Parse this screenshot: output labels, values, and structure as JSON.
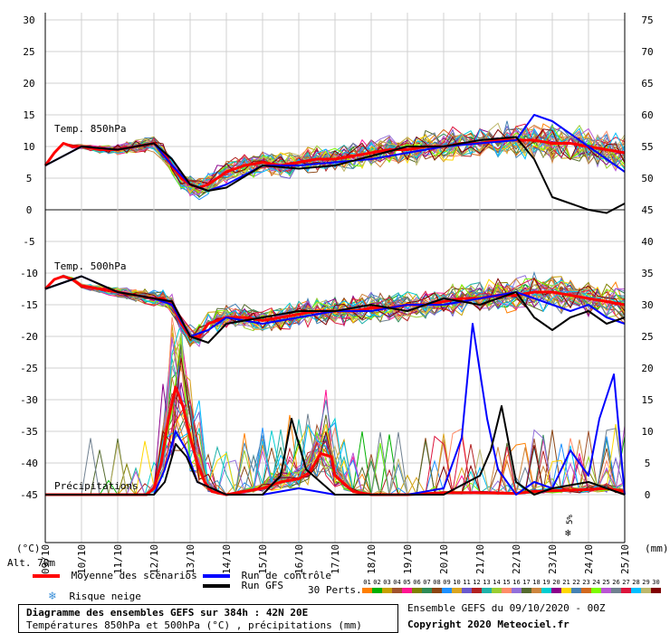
{
  "chart_data": {
    "type": "line",
    "title": "Diagramme des ensembles GEFS sur 384h : 42N 20E",
    "subtitle": "Températures 850hPa et 500hPa (°C) , précipitations (mm)",
    "left_axis": {
      "label": "(°C)",
      "ticks": [
        30,
        25,
        20,
        15,
        10,
        5,
        0,
        -5,
        -10,
        -15,
        -20,
        -25,
        -30,
        -35,
        -40,
        -45
      ],
      "range": [
        -45,
        30
      ]
    },
    "right_axis": {
      "label": "(mm)",
      "ticks": [
        75,
        70,
        65,
        60,
        55,
        50,
        45,
        40,
        35,
        30,
        25,
        20,
        15,
        10,
        5,
        0
      ],
      "range": [
        0,
        75
      ]
    },
    "x_ticks": [
      "09/10",
      "10/10",
      "11/10",
      "12/10",
      "13/10",
      "14/10",
      "15/10",
      "16/10",
      "17/10",
      "18/10",
      "19/10",
      "20/10",
      "21/10",
      "22/10",
      "23/10",
      "24/10",
      "25/10"
    ],
    "altitude_label": "Alt. 70m",
    "panel_labels": {
      "t850": "Temp. 850hPa",
      "t500": "Temp. 500hPa",
      "precip": "Précipitations"
    },
    "snow_risk_label": "5%",
    "series": [
      {
        "name": "Moyenne des scénarios",
        "panel": "t850",
        "x": [
          0,
          0.25,
          0.5,
          0.75,
          1,
          1.5,
          2,
          2.5,
          3,
          3.25,
          3.5,
          3.75,
          4,
          4.25,
          4.5,
          4.75,
          5,
          5.5,
          6,
          6.5,
          7,
          7.5,
          8,
          8.5,
          9,
          9.5,
          10,
          10.5,
          11,
          11.5,
          12,
          12.5,
          13,
          13.5,
          14,
          14.5,
          15,
          15.5,
          16
        ],
        "values": [
          7,
          9,
          10.5,
          10,
          10,
          9.5,
          9.5,
          10,
          10.5,
          9,
          7,
          5,
          4,
          3.5,
          4,
          5,
          6,
          7,
          7.5,
          7,
          7.5,
          8,
          8,
          8.5,
          9,
          9.5,
          9.5,
          10,
          10,
          10.5,
          10.5,
          11,
          11,
          11,
          10.5,
          10.5,
          10,
          9.5,
          9
        ]
      },
      {
        "name": "Moyenne des scénarios",
        "panel": "t500",
        "x": [
          0,
          0.25,
          0.5,
          0.75,
          1,
          1.5,
          2,
          2.5,
          3,
          3.25,
          3.5,
          3.75,
          4,
          4.25,
          4.5,
          5,
          5.5,
          6,
          6.5,
          7,
          7.5,
          8,
          8.5,
          9,
          9.5,
          10,
          10.5,
          11,
          11.5,
          12,
          12.5,
          13,
          13.5,
          14,
          14.5,
          15,
          15.5,
          16
        ],
        "values": [
          -12.5,
          -11,
          -10.5,
          -11,
          -12,
          -12.5,
          -13,
          -13.5,
          -14,
          -14,
          -15,
          -18,
          -20,
          -20,
          -18,
          -17,
          -17,
          -17.5,
          -17,
          -16.5,
          -16,
          -16,
          -16,
          -15.5,
          -15.5,
          -15,
          -15,
          -14.5,
          -14,
          -14,
          -13.5,
          -13.5,
          -13,
          -13,
          -13.5,
          -14,
          -14.5,
          -15
        ]
      },
      {
        "name": "Moyenne des scénarios",
        "panel": "precip",
        "x": [
          0,
          1,
          2,
          2.8,
          3,
          3.2,
          3.4,
          3.6,
          3.8,
          4,
          4.2,
          4.4,
          4.6,
          5,
          6,
          6.5,
          7,
          7.3,
          7.6,
          7.9,
          8,
          8.5,
          9,
          10,
          11,
          12,
          13,
          13.5,
          14,
          15,
          15.5,
          16
        ],
        "values": [
          0,
          0,
          0,
          0,
          1,
          5,
          12,
          17,
          14,
          9,
          5,
          2,
          0.5,
          0,
          1,
          2,
          2.5,
          3.5,
          6.5,
          6,
          3,
          0.5,
          0,
          0,
          0.3,
          0.3,
          0.2,
          0.5,
          0.6,
          0.8,
          1,
          0.5
        ]
      },
      {
        "name": "Run de contrôle",
        "panel": "t850",
        "x": [
          0,
          1,
          2,
          3,
          3.5,
          4,
          4.5,
          5,
          6,
          7,
          8,
          9,
          10,
          11,
          12,
          13,
          13.5,
          14,
          14.5,
          15,
          15.5,
          16
        ],
        "values": [
          7,
          10,
          9.5,
          10.5,
          7,
          4,
          3,
          4,
          7,
          7,
          7.5,
          8,
          9,
          10,
          10.5,
          11,
          15,
          14,
          12,
          10,
          8,
          6
        ]
      },
      {
        "name": "Run de contrôle",
        "panel": "t500",
        "x": [
          0,
          1,
          2,
          3,
          3.5,
          4,
          4.5,
          5,
          6,
          7,
          8,
          9,
          10,
          11,
          12,
          13,
          13.5,
          14,
          14.5,
          15,
          15.5,
          16
        ],
        "values": [
          -12.5,
          -10.5,
          -13,
          -14,
          -15,
          -20,
          -19,
          -17,
          -18,
          -17,
          -16,
          -16,
          -15,
          -15,
          -14,
          -13,
          -14,
          -15,
          -16,
          -15,
          -17,
          -18
        ]
      },
      {
        "name": "Run de contrôle",
        "panel": "precip",
        "x": [
          0,
          3,
          3.3,
          3.6,
          3.9,
          4.2,
          5,
          6,
          7,
          8,
          9,
          10,
          11,
          11.5,
          11.8,
          12.2,
          12.5,
          13,
          13.5,
          14,
          14.5,
          15,
          15.3,
          15.7,
          16
        ],
        "values": [
          0,
          0,
          4,
          10,
          7,
          2,
          0,
          0,
          1,
          0,
          0,
          0,
          1,
          9,
          27,
          12,
          4,
          0,
          2,
          1,
          7,
          3,
          12,
          19,
          0
        ]
      },
      {
        "name": "Run GFS",
        "panel": "t850",
        "x": [
          0,
          1,
          2,
          3,
          3.5,
          4,
          4.5,
          5,
          6,
          7,
          8,
          9,
          10,
          11,
          12,
          13,
          13.5,
          14,
          14.5,
          15,
          15.5,
          16
        ],
        "values": [
          7,
          10,
          9.5,
          10.5,
          8,
          4,
          3,
          3.5,
          7,
          6.5,
          7,
          8.5,
          10,
          10,
          11,
          11.5,
          8,
          2,
          1,
          0,
          -0.5,
          1
        ]
      },
      {
        "name": "Run GFS",
        "panel": "t500",
        "x": [
          0,
          1,
          2,
          3,
          3.5,
          4,
          4.5,
          5,
          6,
          7,
          8,
          9,
          10,
          11,
          12,
          13,
          13.5,
          14,
          14.5,
          15,
          15.5,
          16
        ],
        "values": [
          -12.5,
          -10.5,
          -13,
          -14,
          -14.5,
          -20,
          -21,
          -18,
          -17,
          -16,
          -16,
          -15,
          -16,
          -14,
          -15,
          -13,
          -17,
          -19,
          -17,
          -16,
          -18,
          -17
        ]
      },
      {
        "name": "Run GFS",
        "panel": "precip",
        "x": [
          0,
          3,
          3.3,
          3.6,
          3.9,
          4.2,
          5,
          6,
          6.5,
          6.8,
          7.2,
          8,
          9,
          10,
          11,
          12,
          12.3,
          12.6,
          13,
          13.5,
          14,
          15,
          16
        ],
        "values": [
          0,
          0,
          2,
          8,
          6,
          2,
          0,
          0,
          3,
          12,
          4,
          0,
          0,
          0,
          0,
          3,
          7,
          14,
          2,
          0,
          1,
          2,
          0
        ]
      }
    ],
    "legend": {
      "mean": "Moyenne des scénarios",
      "control": "Run de contrôle",
      "gfs": "Run GFS",
      "snow": "Risque neige",
      "perts": "30 Perts.",
      "pert_numbers": [
        "01",
        "02",
        "03",
        "04",
        "05",
        "06",
        "07",
        "08",
        "09",
        "10",
        "11",
        "12",
        "13",
        "14",
        "15",
        "16",
        "17",
        "18",
        "19",
        "20",
        "21",
        "22",
        "23",
        "24",
        "25",
        "26",
        "27",
        "28",
        "29",
        "30"
      ]
    },
    "colors": {
      "mean": "#ff0000",
      "control": "#0000ff",
      "gfs": "#000000",
      "snow": "#3a8fd8"
    },
    "pert_colors": [
      "#ff7f00",
      "#00b000",
      "#c8a000",
      "#a0522d",
      "#ff1493",
      "#808000",
      "#2e8b57",
      "#8b4513",
      "#1e90ff",
      "#daa520",
      "#6a5acd",
      "#b22222",
      "#20b2aa",
      "#9acd32",
      "#ff8c69",
      "#9370db",
      "#556b2f",
      "#cd853f",
      "#00ced1",
      "#8b008b",
      "#ffd700",
      "#4682b4",
      "#d2691e",
      "#7cfc00",
      "#ba55d3",
      "#708090",
      "#dc143c",
      "#00bfff",
      "#bdb76b",
      "#800000"
    ]
  },
  "footer": {
    "title": "Diagramme des ensembles GEFS sur 384h : 42N 20E",
    "subtitle": "Températures 850hPa et 500hPa (°C) , précipitations (mm)",
    "ensemble": "Ensemble GEFS du 09/10/2020 - 00Z",
    "copyright": "Copyright 2020 Meteociel.fr"
  }
}
